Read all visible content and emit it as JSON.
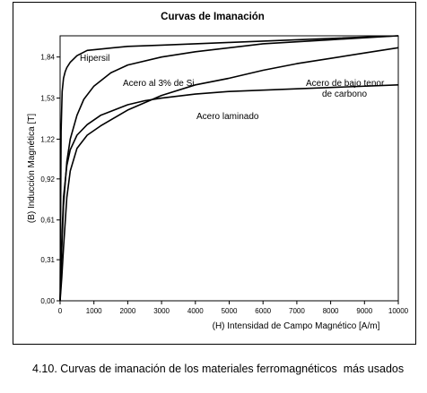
{
  "chart_data": {
    "type": "line",
    "title": "Curvas de Imanación",
    "xlabel": "(H) Intensidad de Campo Magnético  [A/m]",
    "ylabel": "(B) Inducción Magnética [T]",
    "xlim": [
      0,
      10000
    ],
    "ylim": [
      0,
      2.0
    ],
    "x_ticks": [
      "0",
      "1000",
      "2000",
      "3000",
      "4000",
      "5000",
      "6000",
      "7000",
      "8000",
      "9000",
      "10000"
    ],
    "y_ticks": [
      "0,00",
      "0,31",
      "0,61",
      "0,92",
      "1,22",
      "1,53",
      "1,84"
    ],
    "y_tick_values": [
      0.0,
      0.31,
      0.61,
      0.92,
      1.22,
      1.53,
      1.84
    ],
    "grid": false,
    "series": [
      {
        "name": "Hipersil",
        "x": [
          0,
          30,
          60,
          100,
          150,
          200,
          300,
          500,
          800,
          1200,
          2000,
          3000,
          5000,
          7000,
          10000
        ],
        "y": [
          0.0,
          1.28,
          1.58,
          1.68,
          1.73,
          1.76,
          1.8,
          1.85,
          1.89,
          1.9,
          1.92,
          1.93,
          1.95,
          1.97,
          2.0
        ]
      },
      {
        "name": "Acero al 3% de Si",
        "x": [
          0,
          50,
          100,
          200,
          300,
          500,
          700,
          1000,
          1500,
          2000,
          3000,
          4000,
          6000,
          8000,
          10000
        ],
        "y": [
          0.0,
          0.4,
          0.72,
          1.05,
          1.22,
          1.4,
          1.52,
          1.62,
          1.72,
          1.78,
          1.84,
          1.88,
          1.94,
          1.97,
          2.0
        ]
      },
      {
        "name": "Acero de bajo tenor de carbono",
        "x": [
          0,
          50,
          100,
          200,
          300,
          500,
          800,
          1200,
          2000,
          3000,
          4000,
          5000,
          6000,
          7000,
          8000,
          9000,
          10000
        ],
        "y": [
          0.0,
          0.18,
          0.4,
          0.78,
          0.98,
          1.15,
          1.25,
          1.32,
          1.44,
          1.55,
          1.63,
          1.68,
          1.74,
          1.79,
          1.83,
          1.87,
          1.91
        ]
      },
      {
        "name": "Acero laminado",
        "x": [
          0,
          50,
          100,
          200,
          300,
          500,
          800,
          1200,
          2000,
          2500,
          3000,
          4000,
          5000,
          7000,
          10000
        ],
        "y": [
          0.0,
          0.45,
          0.78,
          1.02,
          1.14,
          1.25,
          1.33,
          1.4,
          1.48,
          1.51,
          1.53,
          1.56,
          1.58,
          1.6,
          1.63
        ]
      }
    ],
    "annotations": [
      "Hipersil",
      "Acero al 3% de Si",
      "Acero de bajo tenor",
      "de carbono",
      "Acero laminado"
    ]
  },
  "caption": "4.10. Curvas de imanación de los materiales ferromagnéticos  más usados",
  "colors": {
    "line": "#000000",
    "background": "#ffffff"
  }
}
